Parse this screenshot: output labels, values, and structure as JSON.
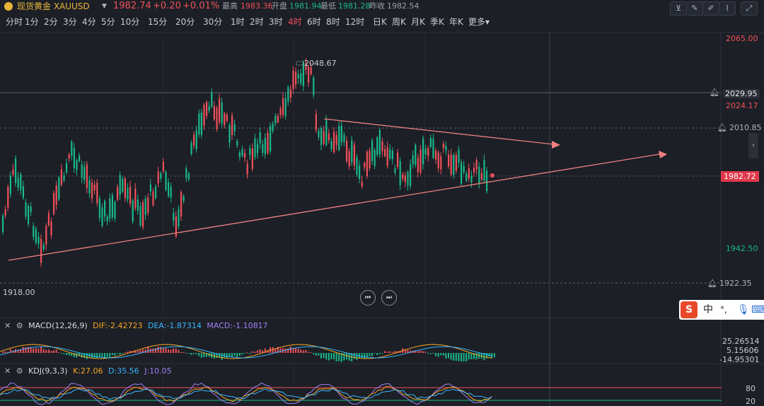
{
  "header": {
    "name": "现货黄金 XAUUSD",
    "price": "1982.74",
    "change": "+0.20",
    "change_pct": "+0.01%",
    "high_label": "最高",
    "high": "1983.36",
    "open_label": "开盘",
    "open": "1981.94",
    "low_label": "最低",
    "low": "1981.28",
    "prev_close_label": "昨收",
    "prev_close": "1982.54"
  },
  "periods": [
    "分时",
    "1分",
    "2分",
    "3分",
    "4分",
    "5分",
    "10分",
    "15分",
    "20分",
    "30分",
    "1时",
    "2时",
    "3时",
    "4时",
    "6时",
    "8时",
    "12时",
    "日K",
    "周K",
    "月K",
    "季K",
    "年K",
    "更多"
  ],
  "active_period": "4时",
  "price_axis": {
    "top": "2065.00",
    "line1": "2029.95",
    "line2": "2024.17",
    "line3": "2010.85",
    "current": "1982.72",
    "low_tick": "1942.50",
    "line4": "1922.35"
  },
  "annotations": {
    "high_mark": "2048.67",
    "low_mark": "1918.00"
  },
  "macd": {
    "title": "MACD(12,26,9)",
    "dif": "DIF:-2.42723",
    "dea": "DEA:-1.87314",
    "macd": "MACD:-1.10817",
    "axis": [
      "25.26514",
      "5.15606",
      "-14.95301"
    ]
  },
  "kdj": {
    "title": "KDJ(9,3,3)",
    "k": "K:27.06",
    "d": "D:35.56",
    "j": "J:10.05",
    "axis": [
      "80",
      "20"
    ]
  },
  "ime": {
    "logo": "S",
    "lang": "中",
    "punct": "°,"
  },
  "colors": {
    "up": "#f0505a",
    "down": "#19b88a",
    "trend": "#f08080",
    "bg": "#1c1f26"
  }
}
